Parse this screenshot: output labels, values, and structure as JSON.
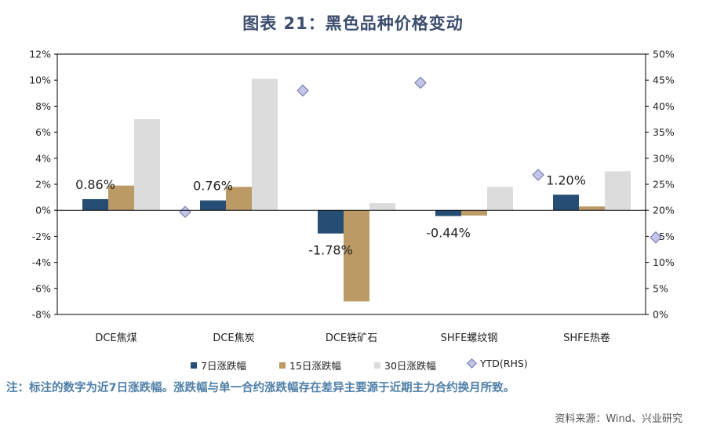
{
  "title": "图表 21：黑色品种价格变动",
  "chart_data": {
    "type": "bar",
    "categories": [
      "DCE焦煤",
      "DCE焦炭",
      "DCE铁矿石",
      "SHFE螺纹钢",
      "SHFE热卷"
    ],
    "series": [
      {
        "name": "7日涨跌幅",
        "color": "#264d73",
        "values": [
          0.86,
          0.76,
          -1.78,
          -0.44,
          1.2
        ]
      },
      {
        "name": "15日涨跌幅",
        "color": "#bc9a66",
        "values": [
          1.9,
          1.8,
          -7.0,
          -0.4,
          0.3
        ]
      },
      {
        "name": "30日涨跌幅",
        "color": "#dcdcdc",
        "values": [
          7.0,
          10.1,
          0.55,
          1.8,
          3.0
        ]
      }
    ],
    "ytd_series": {
      "name": "YTD (RHS)",
      "color": "#c3c6e6",
      "stroke": "#6a6fae",
      "values": [
        19.7,
        43.0,
        44.5,
        26.8,
        14.8
      ]
    },
    "data_labels": [
      "0.86%",
      "0.76%",
      "-1.78%",
      "-0.44%",
      "1.20%"
    ],
    "ylim": [
      -8,
      12
    ],
    "yticks": [
      -8,
      -6,
      -4,
      -2,
      0,
      2,
      4,
      6,
      8,
      10,
      12
    ],
    "ytick_labels": [
      "-8%",
      "-6%",
      "-4%",
      "-2%",
      "0%",
      "2%",
      "4%",
      "6%",
      "8%",
      "10%",
      "12%"
    ],
    "y2lim": [
      0,
      50
    ],
    "y2ticks": [
      0,
      5,
      10,
      15,
      20,
      25,
      30,
      35,
      40,
      45,
      50
    ],
    "y2tick_labels": [
      "0%",
      "5%",
      "10%",
      "15%",
      "20%",
      "25%",
      "30%",
      "35%",
      "40%",
      "45%",
      "50%"
    ],
    "legend_position": "bottom",
    "grid": false
  },
  "legend": {
    "items": [
      "7日涨跌幅",
      "15日涨跌幅",
      "30日涨跌幅",
      "YTD(RHS)"
    ]
  },
  "note": "注：标注的数字为近7日涨跌幅。涨跌幅与单一合约涨跌幅存在差异主要源于近期主力合约换月所致。",
  "source": "资料来源：Wind、兴业研究"
}
